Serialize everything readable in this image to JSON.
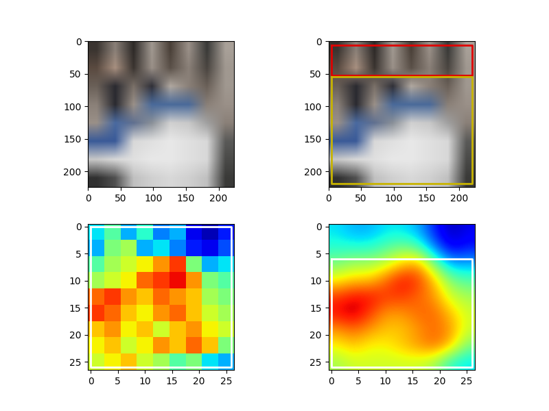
{
  "chart_data": [
    {
      "type": "image",
      "xlim": [
        0,
        224
      ],
      "ylim": [
        224,
        0
      ],
      "xticks": [
        0,
        50,
        100,
        150,
        200
      ],
      "yticks": [
        0,
        50,
        100,
        150,
        200
      ],
      "pixels": [
        [
          "#3a3430",
          "#8a8078",
          "#2e2a28",
          "#a09890",
          "#4a4038",
          "#9a9088",
          "#3a3a38",
          "#a8a098"
        ],
        [
          "#5a4a40",
          "#a89080",
          "#3a3430",
          "#9a9088",
          "#5a5048",
          "#8a8078",
          "#4a4540",
          "#a09890"
        ],
        [
          "#6a6058",
          "#2a2a30",
          "#7a7068",
          "#303038",
          "#b0a8a0",
          "#8a8078",
          "#6a6058",
          "#a09890"
        ],
        [
          "#8a8078",
          "#2a2a30",
          "#9a9088",
          "#4a6a9a",
          "#4a6a9a",
          "#4a6a9a",
          "#8a8078",
          "#9a9088"
        ],
        [
          "#9a9088",
          "#4a6aa0",
          "#607090",
          "#8a9098",
          "#d0d0d0",
          "#c8c8c8",
          "#a0a0a0",
          "#8a8078"
        ],
        [
          "#3a5a98",
          "#3a5a98",
          "#d8d8d8",
          "#e0e0e0",
          "#e8e8e8",
          "#e0e0e0",
          "#d8d8d8",
          "#5a5a58"
        ],
        [
          "#c8c8c8",
          "#d8d8d8",
          "#e0e0e0",
          "#e8e8e8",
          "#e8e8e8",
          "#e0e0e0",
          "#d8d8d8",
          "#4a4a48"
        ],
        [
          "#303030",
          "#505050",
          "#c0c0c0",
          "#d0d0d0",
          "#d8d8d8",
          "#d0d0d0",
          "#c0c0c0",
          "#3a3a38"
        ]
      ]
    },
    {
      "type": "image",
      "xlim": [
        0,
        224
      ],
      "ylim": [
        224,
        0
      ],
      "xticks": [
        0,
        50,
        100,
        150,
        200
      ],
      "yticks": [
        0,
        50,
        100,
        150,
        200
      ],
      "pixels": [
        [
          "#3a3430",
          "#8a8078",
          "#2e2a28",
          "#a09890",
          "#4a4038",
          "#9a9088",
          "#3a3a38",
          "#a8a098"
        ],
        [
          "#5a4a40",
          "#a89080",
          "#3a3430",
          "#9a9088",
          "#5a5048",
          "#8a8078",
          "#4a4540",
          "#a09890"
        ],
        [
          "#6a6058",
          "#2a2a30",
          "#7a7068",
          "#303038",
          "#b0a8a0",
          "#8a8078",
          "#6a6058",
          "#a09890"
        ],
        [
          "#8a8078",
          "#2a2a30",
          "#9a9088",
          "#4a6a9a",
          "#4a6a9a",
          "#4a6a9a",
          "#8a8078",
          "#9a9088"
        ],
        [
          "#9a9088",
          "#4a6aa0",
          "#607090",
          "#8a9098",
          "#d0d0d0",
          "#c8c8c8",
          "#a0a0a0",
          "#8a8078"
        ],
        [
          "#3a5a98",
          "#3a5a98",
          "#d8d8d8",
          "#e0e0e0",
          "#e8e8e8",
          "#e0e0e0",
          "#d8d8d8",
          "#5a5a58"
        ],
        [
          "#c8c8c8",
          "#d8d8d8",
          "#e0e0e0",
          "#e8e8e8",
          "#e8e8e8",
          "#e0e0e0",
          "#d8d8d8",
          "#4a4a48"
        ],
        [
          "#303030",
          "#505050",
          "#c0c0c0",
          "#d0d0d0",
          "#d8d8d8",
          "#d0d0d0",
          "#c0c0c0",
          "#3a3a38"
        ]
      ],
      "boxes": [
        {
          "x0": 5,
          "y0": 6,
          "x1": 220,
          "y1": 52,
          "color": "#e00000"
        },
        {
          "x0": 5,
          "y0": 55,
          "x1": 220,
          "y1": 218,
          "color": "#c8b400"
        }
      ]
    },
    {
      "type": "heatmap",
      "xlim": [
        -0.5,
        26.5
      ],
      "ylim": [
        26.5,
        -0.5
      ],
      "xticks": [
        0,
        5,
        10,
        15,
        20,
        25
      ],
      "yticks": [
        0,
        5,
        10,
        15,
        20,
        25
      ],
      "value_range": [
        0,
        1
      ],
      "cells": [
        [
          0.35,
          0.45,
          0.3,
          0.4,
          0.25,
          0.3,
          0.1,
          0.05,
          0.15
        ],
        [
          0.3,
          0.5,
          0.55,
          0.3,
          0.35,
          0.25,
          0.15,
          0.1,
          0.2
        ],
        [
          0.45,
          0.55,
          0.6,
          0.65,
          0.75,
          0.85,
          0.5,
          0.3,
          0.35
        ],
        [
          0.55,
          0.6,
          0.65,
          0.8,
          0.85,
          0.9,
          0.75,
          0.5,
          0.45
        ],
        [
          0.8,
          0.85,
          0.75,
          0.7,
          0.8,
          0.75,
          0.7,
          0.55,
          0.5
        ],
        [
          0.85,
          0.8,
          0.7,
          0.65,
          0.75,
          0.8,
          0.7,
          0.6,
          0.55
        ],
        [
          0.7,
          0.75,
          0.65,
          0.7,
          0.6,
          0.7,
          0.75,
          0.65,
          0.6
        ],
        [
          0.65,
          0.7,
          0.6,
          0.65,
          0.75,
          0.7,
          0.8,
          0.7,
          0.5
        ],
        [
          0.6,
          0.65,
          0.7,
          0.6,
          0.55,
          0.45,
          0.5,
          0.35,
          0.3
        ]
      ],
      "boxes": [
        {
          "x0": 0,
          "y0": 0,
          "x1": 26,
          "y1": 26,
          "color": "#ffffff"
        }
      ]
    },
    {
      "type": "heatmap_smooth",
      "xlim": [
        -0.5,
        26.5
      ],
      "ylim": [
        26.5,
        -0.5
      ],
      "xticks": [
        0,
        5,
        10,
        15,
        20,
        25
      ],
      "yticks": [
        0,
        5,
        10,
        15,
        20,
        25
      ],
      "value_range": [
        0,
        1
      ],
      "cells": [
        [
          0.35,
          0.3,
          0.3,
          0.35,
          0.35,
          0.3,
          0.15,
          0.05,
          0.1
        ],
        [
          0.4,
          0.4,
          0.4,
          0.45,
          0.5,
          0.45,
          0.25,
          0.1,
          0.15
        ],
        [
          0.5,
          0.55,
          0.55,
          0.6,
          0.7,
          0.75,
          0.5,
          0.3,
          0.3
        ],
        [
          0.65,
          0.7,
          0.7,
          0.8,
          0.9,
          0.85,
          0.7,
          0.5,
          0.45
        ],
        [
          0.85,
          0.9,
          0.9,
          0.85,
          0.85,
          0.8,
          0.75,
          0.6,
          0.55
        ],
        [
          0.9,
          0.95,
          0.85,
          0.75,
          0.75,
          0.8,
          0.8,
          0.7,
          0.6
        ],
        [
          0.75,
          0.8,
          0.75,
          0.7,
          0.7,
          0.75,
          0.8,
          0.75,
          0.6
        ],
        [
          0.65,
          0.7,
          0.65,
          0.65,
          0.7,
          0.75,
          0.8,
          0.7,
          0.5
        ],
        [
          0.55,
          0.6,
          0.6,
          0.6,
          0.6,
          0.6,
          0.55,
          0.4,
          0.35
        ]
      ],
      "boxes": [
        {
          "x0": 0,
          "y0": 6,
          "x1": 26,
          "y1": 26,
          "color": "#ffffff"
        }
      ]
    }
  ]
}
